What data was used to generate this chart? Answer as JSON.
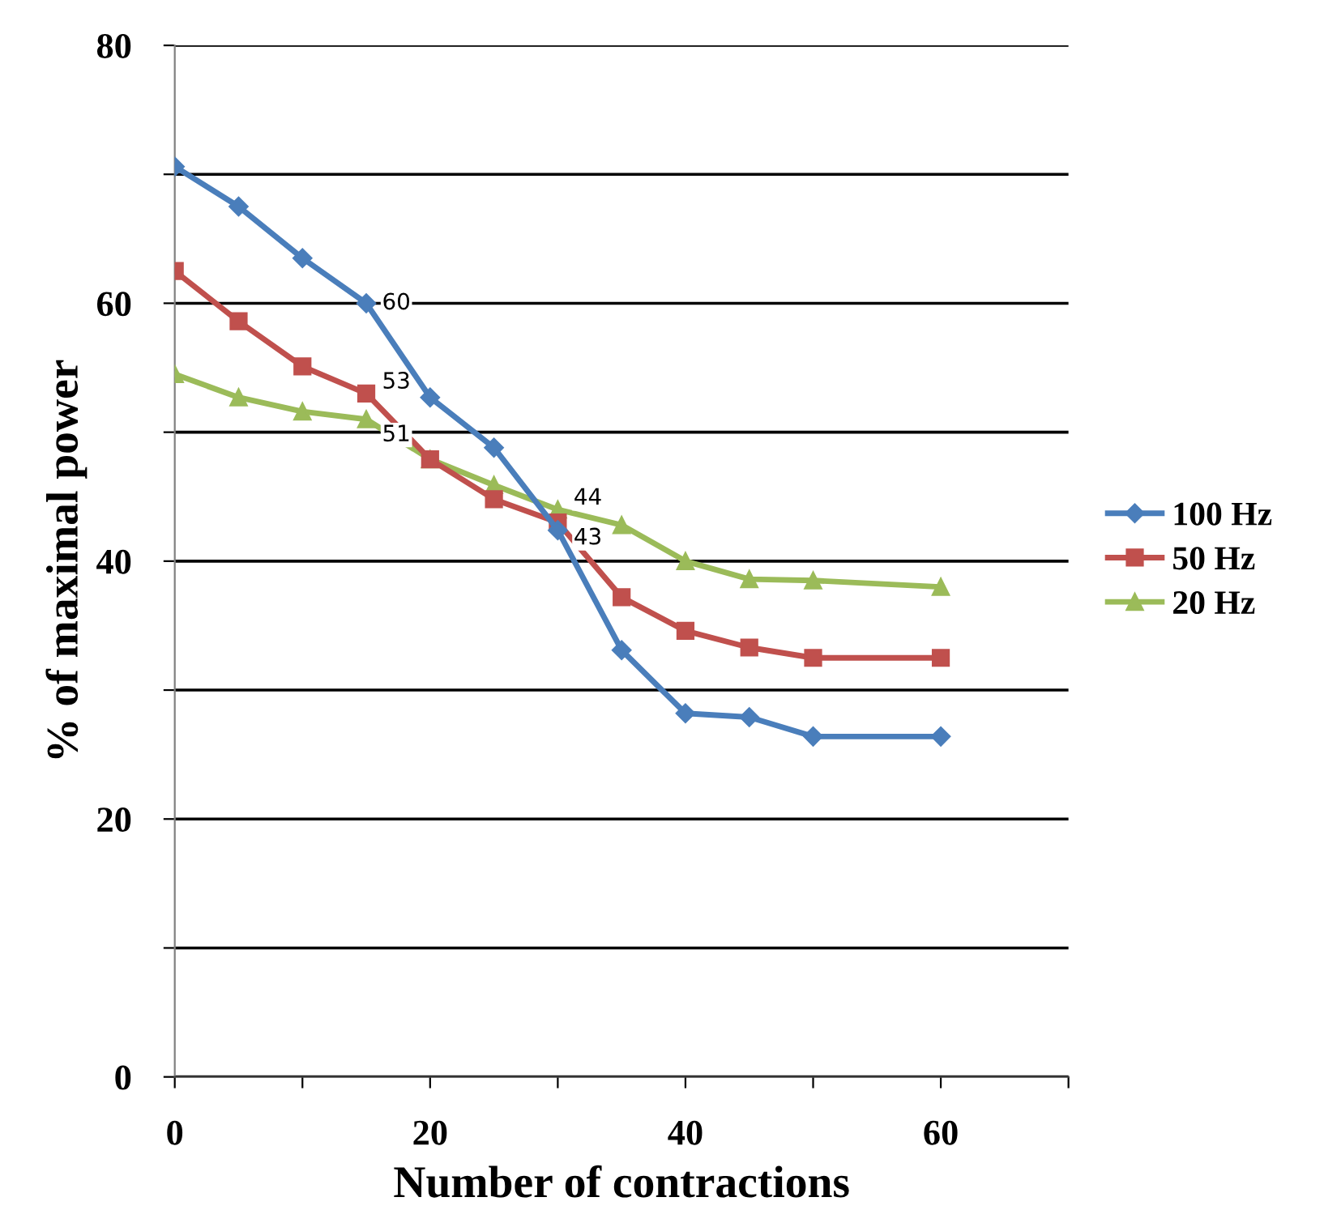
{
  "chart_data": {
    "type": "line",
    "xlabel": "Number of contractions",
    "ylabel": "% of maximal power",
    "x": [
      0,
      5,
      10,
      15,
      20,
      25,
      30,
      35,
      40,
      45,
      50,
      60
    ],
    "series": [
      {
        "name": "100 Hz",
        "color": "#4a7ebb",
        "marker": "diamond",
        "values": [
          70.6,
          67.5,
          63.5,
          60,
          52.7,
          48.8,
          42.4,
          33.1,
          28.2,
          27.9,
          26.4,
          26.4
        ],
        "value_labels": [
          null,
          null,
          null,
          "60",
          null,
          null,
          null,
          null,
          null,
          null,
          null,
          null
        ]
      },
      {
        "name": "50 Hz",
        "color": "#c0504d",
        "marker": "square",
        "values": [
          62.5,
          58.6,
          55.1,
          53,
          47.9,
          44.8,
          43,
          37.2,
          34.6,
          33.3,
          32.5,
          32.5
        ],
        "value_labels": [
          null,
          null,
          null,
          "53",
          null,
          null,
          "43",
          null,
          null,
          null,
          null,
          null
        ]
      },
      {
        "name": "20 Hz",
        "color": "#9bbb59",
        "marker": "triangle",
        "values": [
          54.5,
          52.7,
          51.6,
          51,
          47.9,
          45.9,
          44,
          42.8,
          40.0,
          38.6,
          38.5,
          38.0
        ],
        "value_labels": [
          null,
          null,
          null,
          "51",
          null,
          null,
          "44",
          null,
          null,
          null,
          null,
          null
        ]
      }
    ],
    "xlim": [
      0,
      70
    ],
    "xticks": [
      0,
      {
        "value": 10,
        "label": null
      },
      20,
      {
        "value": 30,
        "label": null
      },
      40,
      {
        "value": 50,
        "label": null
      },
      60,
      {
        "value": 70,
        "label": null
      }
    ],
    "ylim": [
      0,
      80
    ],
    "yticks": [
      0,
      {
        "value": 10,
        "label": null
      },
      20,
      {
        "value": 30,
        "label": null
      },
      40,
      {
        "value": 50,
        "label": null
      },
      60,
      {
        "value": 70,
        "label": null
      },
      80
    ],
    "grid": "y",
    "legend": "right",
    "line_style": "solid"
  }
}
